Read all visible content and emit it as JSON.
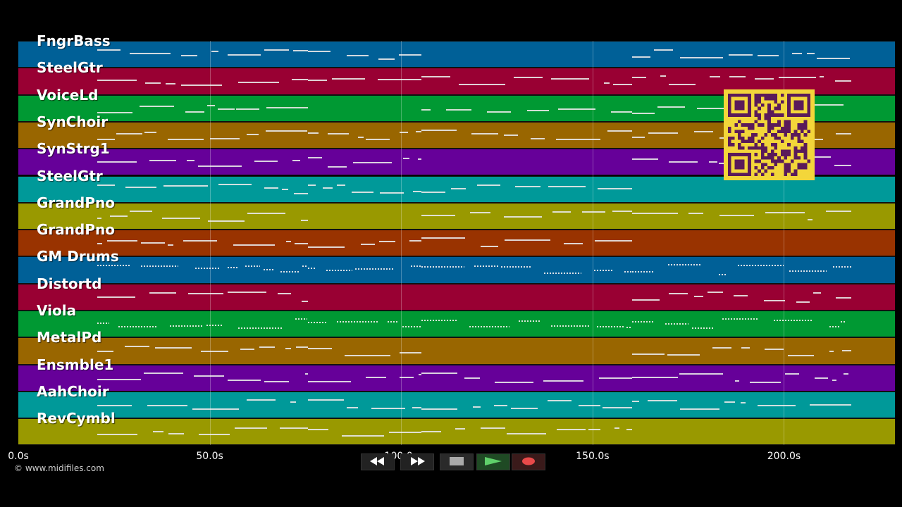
{
  "colors": {
    "track_palette": [
      "#006097",
      "#990033",
      "#009933",
      "#996600",
      "#660099",
      "#009999",
      "#999900",
      "#993300"
    ],
    "note": "#e8e8e8",
    "qr_bg": "#f3d63a",
    "qr_fg": "#5a1a5a"
  },
  "tracks": [
    {
      "label": "FngrBass"
    },
    {
      "label": "SteelGtr"
    },
    {
      "label": "VoiceLd"
    },
    {
      "label": "SynChoir"
    },
    {
      "label": "SynStrg1"
    },
    {
      "label": "SteelGtr"
    },
    {
      "label": "GrandPno"
    },
    {
      "label": "GrandPno"
    },
    {
      "label": "GM Drums"
    },
    {
      "label": "Distortd"
    },
    {
      "label": "Viola"
    },
    {
      "label": "MetalPd"
    },
    {
      "label": "Ensmble1"
    },
    {
      "label": "AahChoir"
    },
    {
      "label": "RevCymbl"
    }
  ],
  "timeline": {
    "ticks": [
      "0.0s",
      "50.0s",
      "100.0s",
      "150.0s",
      "200.0s"
    ],
    "tick_values": [
      0,
      50,
      100,
      150,
      200
    ],
    "max_seconds": 229
  },
  "copyright": "© www.midifiles.com",
  "transport": {
    "rewind": "rewind-icon",
    "fast_forward": "fast-forward-icon",
    "stop": "stop-icon",
    "play": "play-icon",
    "record": "record-icon"
  }
}
